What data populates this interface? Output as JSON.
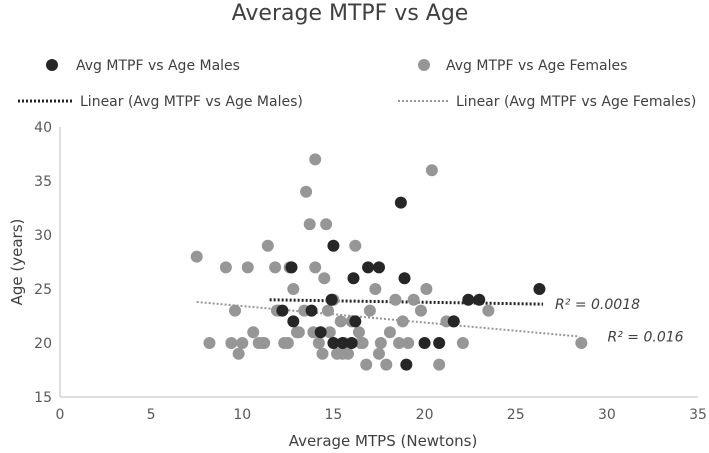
{
  "chart_data": {
    "type": "scatter",
    "title": "Average MTPF vs Age",
    "xlabel": "Average MTPS (Newtons)",
    "ylabel": "Age (years)",
    "xlim": [
      0,
      35
    ],
    "ylim": [
      15,
      40
    ],
    "xticks": [
      "0",
      "5",
      "10",
      "15",
      "20",
      "25",
      "30",
      "35"
    ],
    "yticks": [
      "15",
      "20",
      "25",
      "30",
      "35",
      "40"
    ],
    "grid": false,
    "legend_placement": "top",
    "legend": {
      "males": "Avg MTPF vs Age Males",
      "females": "Avg MTPF vs Age Females",
      "linear_males": "Linear (Avg MTPF vs Age Males)",
      "linear_females": "Linear (Avg MTPF vs Age Females)"
    },
    "colors": {
      "males": "#262626",
      "females": "#969696",
      "text": "#404040",
      "axis": "#bfbfbf"
    },
    "series": [
      {
        "name": "Avg MTPF vs Age Males",
        "x": [
          12.2,
          12.8,
          13.8,
          14.3,
          15.0,
          15.0,
          15.5,
          16.1,
          16.2,
          16.9,
          17.5,
          18.7,
          19.0,
          18.9,
          20.0,
          20.8,
          21.6,
          22.4,
          23.0,
          26.3,
          12.7,
          14.9,
          16.0
        ],
        "y": [
          23,
          22,
          23,
          21,
          29,
          20,
          20,
          26,
          22,
          27,
          27,
          33,
          18,
          26,
          20,
          20,
          22,
          24,
          24,
          25,
          27,
          24,
          20
        ]
      },
      {
        "name": "Avg MTPF vs Age Females",
        "x": [
          7.5,
          8.2,
          9.1,
          9.4,
          9.6,
          9.8,
          10.0,
          10.3,
          10.6,
          10.9,
          11.1,
          11.2,
          11.4,
          11.8,
          12.0,
          12.3,
          12.6,
          12.8,
          13.1,
          13.4,
          13.7,
          13.9,
          14.0,
          14.2,
          14.4,
          14.6,
          14.8,
          15.0,
          15.2,
          15.4,
          15.6,
          15.8,
          16.0,
          16.2,
          16.4,
          16.6,
          16.8,
          17.0,
          17.3,
          17.6,
          17.9,
          18.1,
          18.4,
          18.8,
          19.1,
          19.4,
          19.8,
          20.1,
          20.4,
          20.8,
          21.2,
          21.6,
          22.1,
          23.5,
          28.6,
          13.5,
          14.0,
          14.5,
          13.0,
          12.5,
          15.5,
          16.5,
          17.5,
          18.6,
          11.9,
          14.7
        ],
        "y": [
          28,
          20,
          27,
          20,
          23,
          19,
          20,
          27,
          21,
          20,
          20,
          20,
          29,
          27,
          23,
          20,
          27,
          25,
          21,
          23,
          31,
          21,
          37,
          20,
          19,
          31,
          21,
          24,
          19,
          22,
          20,
          19,
          22,
          29,
          21,
          20,
          18,
          23,
          25,
          20,
          18,
          21,
          24,
          22,
          20,
          24,
          23,
          25,
          36,
          18,
          22,
          22,
          20,
          23,
          20,
          34,
          27,
          26,
          21,
          20,
          19,
          20,
          19,
          20,
          23,
          23
        ]
      }
    ],
    "trendlines": [
      {
        "series": "Avg MTPF vs Age Males",
        "x": [
          11.5,
          26.5
        ],
        "y": [
          24.0,
          23.6
        ],
        "r2_label": "R² = 0.0018"
      },
      {
        "series": "Avg MTPF vs Age Females",
        "x": [
          7.5,
          28.5
        ],
        "y": [
          23.8,
          20.6
        ],
        "r2_label": "R² = 0.016"
      }
    ]
  }
}
